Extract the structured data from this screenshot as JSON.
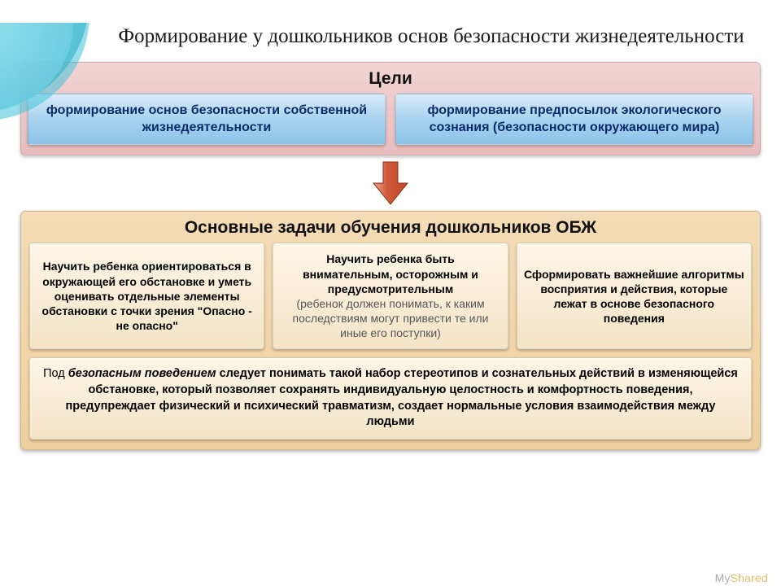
{
  "title": "Формирование у дошкольников основ безопасности жизнедеятельности",
  "goals": {
    "heading": "Цели",
    "panel_bg": "linear-gradient(#f3d4d4, #e8bcbc)",
    "box_bg": "linear-gradient(#d6ecf9, #a9d3ef 50%, #8dc4e7)",
    "box_text_color": "#0b2a6b",
    "items": [
      {
        "text": "формирование основ безопасности собственной жизнедеятельности"
      },
      {
        "text": "формирование предпосылок экологического сознания (безопасности окружающего мира)"
      }
    ]
  },
  "arrow": {
    "shaft_color": "#d05a3a",
    "head_color": "#c24724",
    "highlight": "#f2a98d",
    "width": 46,
    "height": 56
  },
  "tasks": {
    "heading": "Основные задачи обучения дошкольников ОБЖ",
    "panel_bg": "linear-gradient(#f4dcb6, #efcf9e)",
    "box_bg": "linear-gradient(#fdf5e6, #f4e5c7)",
    "items": [
      {
        "bold": "Научить ребенка ориентироваться в окружающей его обстановке и уметь оценивать отдельные элементы обстановки с точки зрения \"Опасно - не опасно\"",
        "norm": ""
      },
      {
        "bold": "Научить ребенка быть внимательным, осторожным и предусмотрительным",
        "norm": "(ребенок должен понимать, к каким последствиям могут привести те или иные его поступки)"
      },
      {
        "bold": "Сформировать важнейшие алгоритмы восприятия и действия, которые лежат в основе безопасного поведения",
        "norm": ""
      }
    ],
    "definition": {
      "lead": "Под ",
      "em": "безопасным поведением",
      "rest": " следует понимать такой набор стереотипов и сознательных действий в изменяющейся обстановке, который позволяет сохранять индивидуальную целостность и комфортность поведения, предупреждает физический и психический травматизм, создает нормальные условия взаимодействия между людьми"
    }
  },
  "watermark": {
    "my": "My",
    "shared": "Shared"
  },
  "colors": {
    "title_color": "#1a1a1a",
    "heading_color": "#111111"
  }
}
